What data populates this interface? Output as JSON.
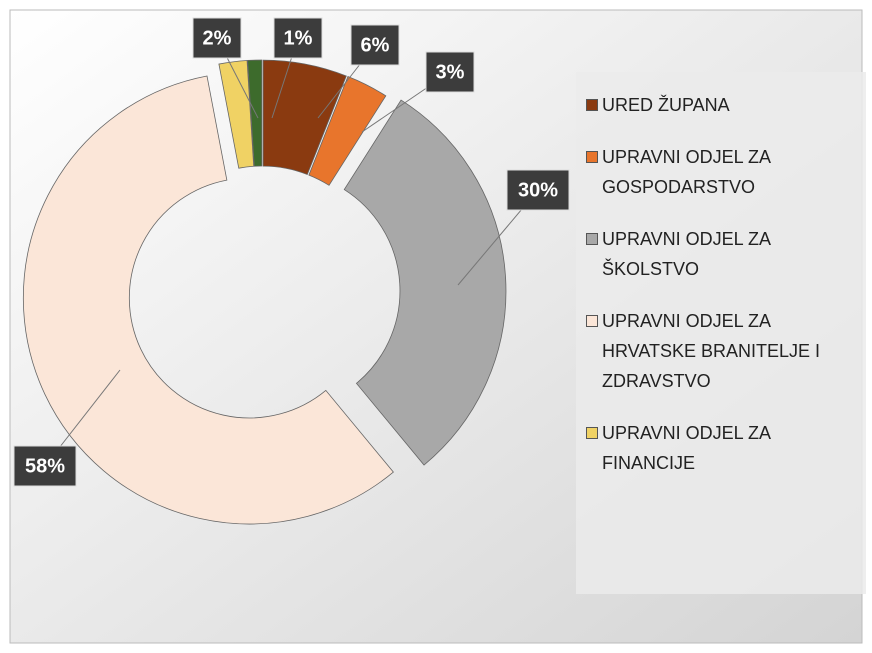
{
  "chart_data": {
    "type": "donut",
    "categories": [
      "URED ŽUPANA",
      "UPRAVNI ODJEL ZA GOSPODARSTVO",
      "UPRAVNI ODJEL ZA ŠKOLSTVO",
      "UPRAVNI ODJEL ZA HRVATSKE BRANITELJE I ZDRAVSTVO",
      "UPRAVNI ODJEL ZA FINANCIJE",
      null
    ],
    "values": [
      6,
      3,
      30,
      58,
      2,
      1
    ],
    "value_labels": [
      "6%",
      "3%",
      "30%",
      "58%",
      "2%",
      "1%"
    ],
    "colors": [
      "#8a3a10",
      "#e8752c",
      "#a8a8a8",
      "#fbe6d8",
      "#f0d264",
      "#3d6b2c"
    ],
    "legend": "right"
  }
}
